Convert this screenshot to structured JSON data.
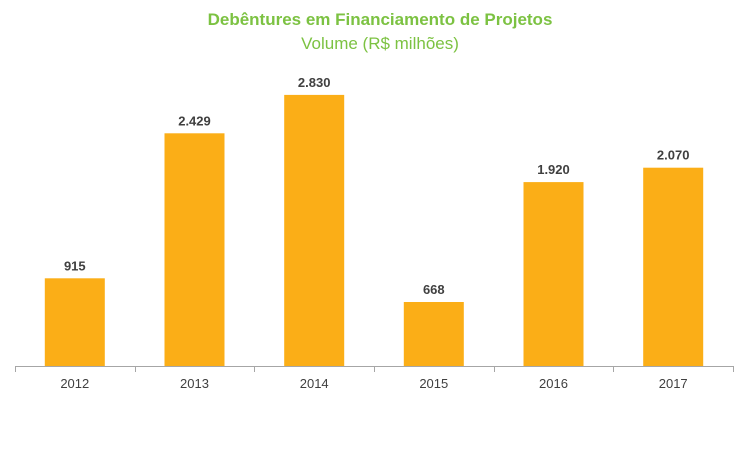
{
  "chart_data": {
    "type": "bar",
    "title": "Debêntures em Financiamento de Projetos",
    "subtitle": "Volume (R$ milhões)",
    "categories": [
      "2012",
      "2013",
      "2014",
      "2015",
      "2016",
      "2017"
    ],
    "values": [
      915,
      2429,
      2830,
      668,
      1920,
      2070
    ],
    "value_labels": [
      "915",
      "2.429",
      "2.830",
      "668",
      "1.920",
      "2.070"
    ],
    "xlabel": "",
    "ylabel": "",
    "ylim": [
      0,
      3100
    ],
    "grid": false,
    "legend": "none",
    "bar_color": "#fbae17",
    "title_color": "#7cc242"
  }
}
